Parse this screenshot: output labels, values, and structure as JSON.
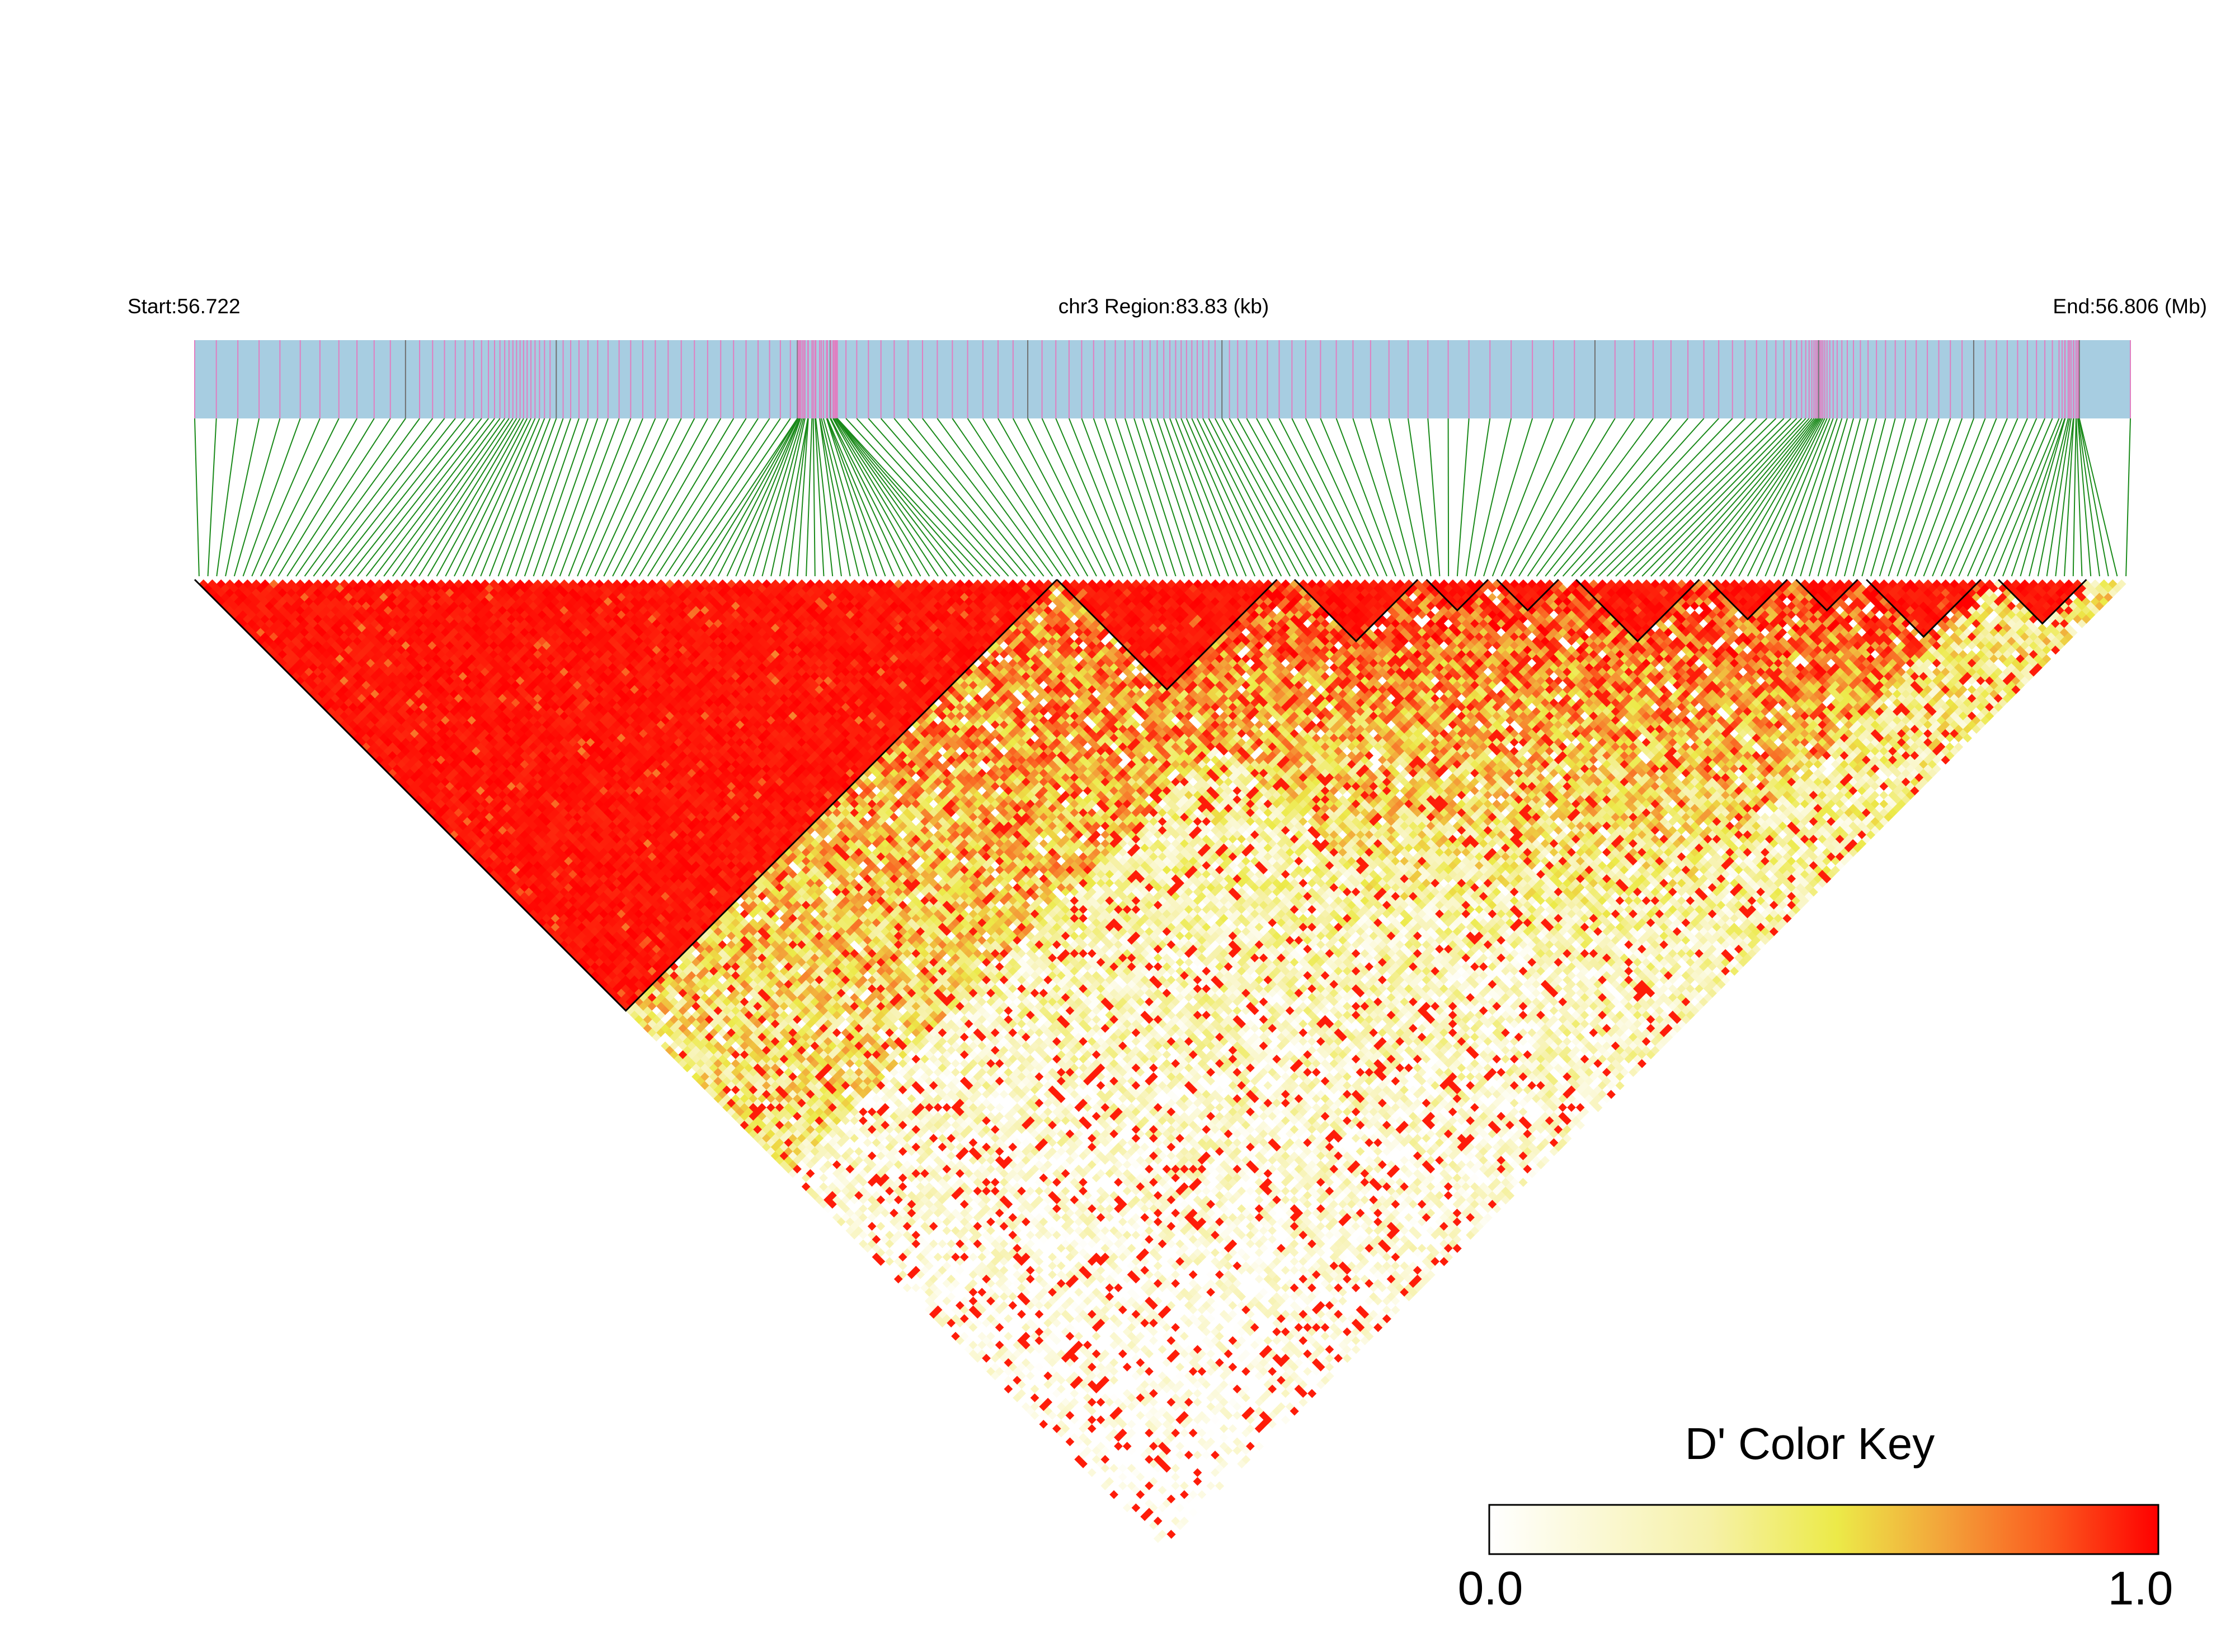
{
  "header": {
    "start_label": "Start:56.722",
    "region_label": "chr3 Region:83.83 (kb)",
    "end_label": "End:56.806 (Mb)"
  },
  "colors": {
    "track_background": "#a7cde1",
    "snp_tick": "#e07fc1",
    "dense_tick": "#707070",
    "connector": "#1a8a1a",
    "block_outline": "#000000",
    "key_low": "#ffffff",
    "key_mid": "#ecea48",
    "key_high": "#ff0000"
  },
  "color_key": {
    "title": "D' Color Key",
    "min_label": "0.0",
    "max_label": "1.0",
    "min": 0.0,
    "max": 1.0
  },
  "chart_data": {
    "type": "heatmap",
    "subtype": "linkage-disequilibrium triangle",
    "metric": "D'",
    "chromosome": "chr3",
    "region_start_mb": 56.722,
    "region_end_mb": 56.806,
    "region_length_kb": 83.83,
    "snp_count": 220,
    "value_range": [
      0.0,
      1.0
    ],
    "ld_blocks_snp_index_ranges": [
      [
        0,
        97
      ],
      [
        98,
        122
      ],
      [
        125,
        138
      ],
      [
        140,
        146
      ],
      [
        148,
        154
      ],
      [
        157,
        170
      ],
      [
        172,
        180
      ],
      [
        182,
        188
      ],
      [
        190,
        202
      ],
      [
        205,
        214
      ]
    ]
  }
}
